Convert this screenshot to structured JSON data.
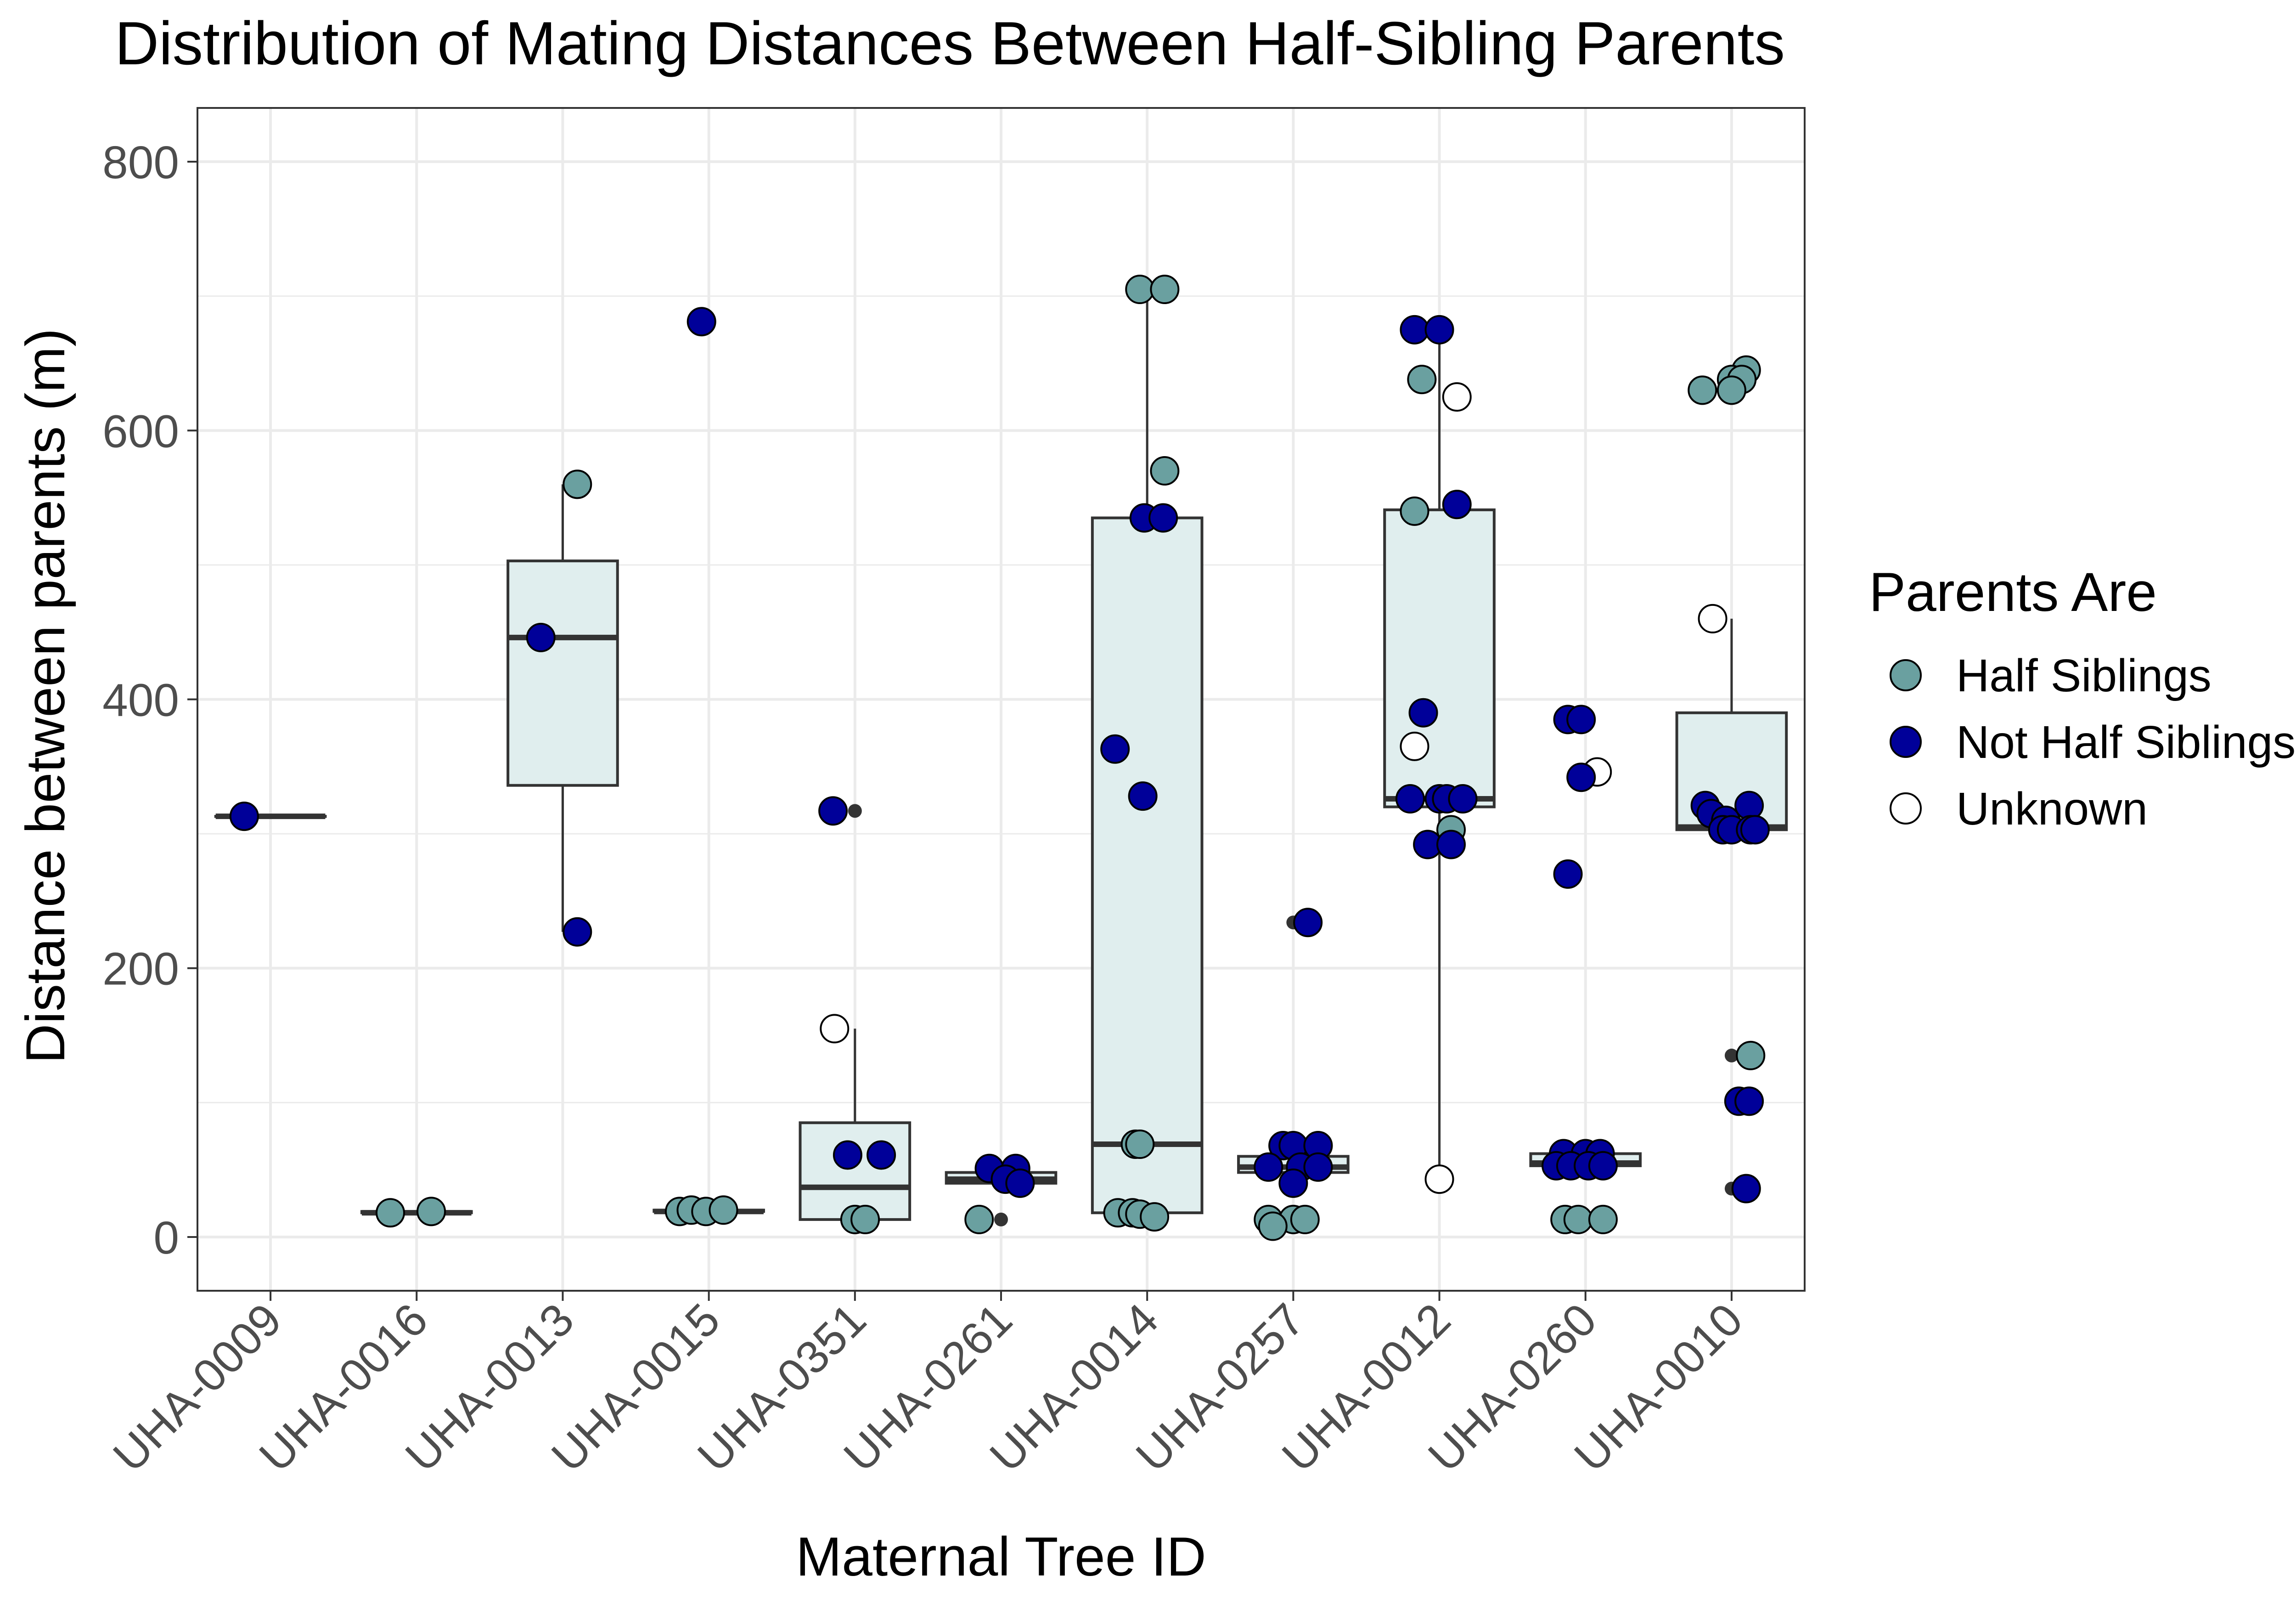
{
  "colors": {
    "half_siblings": "#6aa0a0",
    "not_half_siblings": "#000099",
    "unknown": "#ffffff",
    "box_fill": "#e0eeee",
    "box_stroke": "#333333",
    "grid": "#ebebeb",
    "panel_border": "#333333",
    "outlier": "#333333"
  },
  "chart_data": {
    "type": "box",
    "title": "Distribution of Mating Distances Between Half-Sibling Parents",
    "xlabel": "Maternal Tree ID",
    "ylabel": "Distance between parents (m)",
    "categories": [
      "UHA-0009",
      "UHA-0016",
      "UHA-0013",
      "UHA-0015",
      "UHA-0351",
      "UHA-0261",
      "UHA-0014",
      "UHA-0257",
      "UHA-0012",
      "UHA-0260",
      "UHA-0010"
    ],
    "ylim": [
      -40,
      840
    ],
    "yticks": [
      0,
      200,
      400,
      600,
      800
    ],
    "grid": true,
    "legend": {
      "title": "Parents Are",
      "position": "right",
      "entries": [
        {
          "key": "half_siblings",
          "label": "Half Siblings"
        },
        {
          "key": "not_half_siblings",
          "label": "Not Half Siblings"
        },
        {
          "key": "unknown",
          "label": "Unknown"
        }
      ]
    },
    "boxes": [
      {
        "category": "UHA-0009",
        "min": 313,
        "q1": 313,
        "median": 313,
        "q3": 313,
        "max": 313,
        "outliers": []
      },
      {
        "category": "UHA-0016",
        "min": 18,
        "q1": 18,
        "median": 18,
        "q3": 19,
        "max": 19,
        "outliers": []
      },
      {
        "category": "UHA-0013",
        "min": 227,
        "q1": 336,
        "median": 446,
        "q3": 503,
        "max": 560,
        "outliers": []
      },
      {
        "category": "UHA-0015",
        "min": 19,
        "q1": 19,
        "median": 19,
        "q3": 20,
        "max": 20,
        "outliers": []
      },
      {
        "category": "UHA-0351",
        "min": 13,
        "q1": 13,
        "median": 37,
        "q3": 85,
        "max": 155,
        "outliers": [
          317
        ]
      },
      {
        "category": "UHA-0261",
        "min": 38,
        "q1": 40,
        "median": 43,
        "q3": 48,
        "max": 51,
        "outliers": [
          13
        ]
      },
      {
        "category": "UHA-0014",
        "min": 15,
        "q1": 18,
        "median": 69,
        "q3": 535,
        "max": 705,
        "outliers": []
      },
      {
        "category": "UHA-0257",
        "min": 45,
        "q1": 48,
        "median": 52,
        "q3": 60,
        "max": 68,
        "outliers": [
          234
        ]
      },
      {
        "category": "UHA-0012",
        "min": 43,
        "q1": 320,
        "median": 326,
        "q3": 541,
        "max": 675,
        "outliers": []
      },
      {
        "category": "UHA-0260",
        "min": 52,
        "q1": 53,
        "median": 55,
        "q3": 62,
        "max": 62,
        "outliers": []
      },
      {
        "category": "UHA-0010",
        "min": 301,
        "q1": 303,
        "median": 305,
        "q3": 390,
        "max": 460,
        "outliers": [
          135,
          36
        ]
      }
    ],
    "points": [
      {
        "category": "UHA-0009",
        "group": "not_half_siblings",
        "y": 313,
        "jitter": -0.18
      },
      {
        "category": "UHA-0016",
        "group": "half_siblings",
        "y": 18,
        "jitter": -0.18
      },
      {
        "category": "UHA-0016",
        "group": "half_siblings",
        "y": 19,
        "jitter": 0.1
      },
      {
        "category": "UHA-0013",
        "group": "half_siblings",
        "y": 560,
        "jitter": 0.1
      },
      {
        "category": "UHA-0013",
        "group": "not_half_siblings",
        "y": 446,
        "jitter": -0.15
      },
      {
        "category": "UHA-0013",
        "group": "not_half_siblings",
        "y": 227,
        "jitter": 0.1
      },
      {
        "category": "UHA-0015",
        "group": "not_half_siblings",
        "y": 681,
        "jitter": -0.05
      },
      {
        "category": "UHA-0015",
        "group": "half_siblings",
        "y": 19,
        "jitter": -0.2
      },
      {
        "category": "UHA-0015",
        "group": "half_siblings",
        "y": 20,
        "jitter": -0.12
      },
      {
        "category": "UHA-0015",
        "group": "half_siblings",
        "y": 19,
        "jitter": -0.02
      },
      {
        "category": "UHA-0015",
        "group": "half_siblings",
        "y": 20,
        "jitter": 0.1
      },
      {
        "category": "UHA-0351",
        "group": "not_half_siblings",
        "y": 317,
        "jitter": -0.15
      },
      {
        "category": "UHA-0351",
        "group": "unknown",
        "y": 155,
        "jitter": -0.14
      },
      {
        "category": "UHA-0351",
        "group": "not_half_siblings",
        "y": 61,
        "jitter": -0.05
      },
      {
        "category": "UHA-0351",
        "group": "not_half_siblings",
        "y": 61,
        "jitter": 0.18
      },
      {
        "category": "UHA-0351",
        "group": "half_siblings",
        "y": 13,
        "jitter": 0.0
      },
      {
        "category": "UHA-0351",
        "group": "half_siblings",
        "y": 13,
        "jitter": 0.07
      },
      {
        "category": "UHA-0261",
        "group": "not_half_siblings",
        "y": 51,
        "jitter": -0.08
      },
      {
        "category": "UHA-0261",
        "group": "not_half_siblings",
        "y": 51,
        "jitter": 0.1
      },
      {
        "category": "UHA-0261",
        "group": "not_half_siblings",
        "y": 43,
        "jitter": 0.03
      },
      {
        "category": "UHA-0261",
        "group": "not_half_siblings",
        "y": 40,
        "jitter": 0.13
      },
      {
        "category": "UHA-0261",
        "group": "half_siblings",
        "y": 13,
        "jitter": -0.15
      },
      {
        "category": "UHA-0014",
        "group": "half_siblings",
        "y": 705,
        "jitter": -0.05
      },
      {
        "category": "UHA-0014",
        "group": "half_siblings",
        "y": 705,
        "jitter": 0.12
      },
      {
        "category": "UHA-0014",
        "group": "half_siblings",
        "y": 570,
        "jitter": 0.12
      },
      {
        "category": "UHA-0014",
        "group": "not_half_siblings",
        "y": 535,
        "jitter": -0.02
      },
      {
        "category": "UHA-0014",
        "group": "not_half_siblings",
        "y": 535,
        "jitter": 0.11
      },
      {
        "category": "UHA-0014",
        "group": "not_half_siblings",
        "y": 363,
        "jitter": -0.22
      },
      {
        "category": "UHA-0014",
        "group": "not_half_siblings",
        "y": 328,
        "jitter": -0.03
      },
      {
        "category": "UHA-0014",
        "group": "half_siblings",
        "y": 69,
        "jitter": -0.08
      },
      {
        "category": "UHA-0014",
        "group": "half_siblings",
        "y": 69,
        "jitter": -0.05
      },
      {
        "category": "UHA-0014",
        "group": "half_siblings",
        "y": 18,
        "jitter": -0.2
      },
      {
        "category": "UHA-0014",
        "group": "half_siblings",
        "y": 18,
        "jitter": -0.1
      },
      {
        "category": "UHA-0014",
        "group": "half_siblings",
        "y": 17,
        "jitter": -0.05
      },
      {
        "category": "UHA-0014",
        "group": "half_siblings",
        "y": 15,
        "jitter": 0.05
      },
      {
        "category": "UHA-0257",
        "group": "not_half_siblings",
        "y": 234,
        "jitter": 0.1
      },
      {
        "category": "UHA-0257",
        "group": "not_half_siblings",
        "y": 68,
        "jitter": -0.07
      },
      {
        "category": "UHA-0257",
        "group": "not_half_siblings",
        "y": 68,
        "jitter": 0.0
      },
      {
        "category": "UHA-0257",
        "group": "not_half_siblings",
        "y": 68,
        "jitter": 0.17
      },
      {
        "category": "UHA-0257",
        "group": "not_half_siblings",
        "y": 52,
        "jitter": -0.17
      },
      {
        "category": "UHA-0257",
        "group": "not_half_siblings",
        "y": 52,
        "jitter": 0.05
      },
      {
        "category": "UHA-0257",
        "group": "not_half_siblings",
        "y": 52,
        "jitter": 0.17
      },
      {
        "category": "UHA-0257",
        "group": "not_half_siblings",
        "y": 40,
        "jitter": 0.0
      },
      {
        "category": "UHA-0257",
        "group": "half_siblings",
        "y": 13,
        "jitter": -0.17
      },
      {
        "category": "UHA-0257",
        "group": "half_siblings",
        "y": 13,
        "jitter": 0.0
      },
      {
        "category": "UHA-0257",
        "group": "half_siblings",
        "y": 13,
        "jitter": 0.08
      },
      {
        "category": "UHA-0257",
        "group": "half_siblings",
        "y": 8,
        "jitter": -0.14
      },
      {
        "category": "UHA-0012",
        "group": "not_half_siblings",
        "y": 675,
        "jitter": -0.17
      },
      {
        "category": "UHA-0012",
        "group": "not_half_siblings",
        "y": 675,
        "jitter": 0.0
      },
      {
        "category": "UHA-0012",
        "group": "half_siblings",
        "y": 638,
        "jitter": -0.12
      },
      {
        "category": "UHA-0012",
        "group": "unknown",
        "y": 625,
        "jitter": 0.12
      },
      {
        "category": "UHA-0012",
        "group": "not_half_siblings",
        "y": 545,
        "jitter": 0.12
      },
      {
        "category": "UHA-0012",
        "group": "half_siblings",
        "y": 540,
        "jitter": -0.17
      },
      {
        "category": "UHA-0012",
        "group": "not_half_siblings",
        "y": 390,
        "jitter": -0.11
      },
      {
        "category": "UHA-0012",
        "group": "unknown",
        "y": 365,
        "jitter": -0.17
      },
      {
        "category": "UHA-0012",
        "group": "not_half_siblings",
        "y": 326,
        "jitter": -0.2
      },
      {
        "category": "UHA-0012",
        "group": "not_half_siblings",
        "y": 326,
        "jitter": 0.0
      },
      {
        "category": "UHA-0012",
        "group": "not_half_siblings",
        "y": 326,
        "jitter": 0.05
      },
      {
        "category": "UHA-0012",
        "group": "not_half_siblings",
        "y": 326,
        "jitter": 0.16
      },
      {
        "category": "UHA-0012",
        "group": "half_siblings",
        "y": 303,
        "jitter": 0.08
      },
      {
        "category": "UHA-0012",
        "group": "not_half_siblings",
        "y": 292,
        "jitter": -0.08
      },
      {
        "category": "UHA-0012",
        "group": "not_half_siblings",
        "y": 292,
        "jitter": 0.08
      },
      {
        "category": "UHA-0012",
        "group": "unknown",
        "y": 43,
        "jitter": 0.0
      },
      {
        "category": "UHA-0260",
        "group": "not_half_siblings",
        "y": 385,
        "jitter": -0.12
      },
      {
        "category": "UHA-0260",
        "group": "not_half_siblings",
        "y": 385,
        "jitter": -0.03
      },
      {
        "category": "UHA-0260",
        "group": "unknown",
        "y": 346,
        "jitter": 0.08
      },
      {
        "category": "UHA-0260",
        "group": "not_half_siblings",
        "y": 342,
        "jitter": -0.03
      },
      {
        "category": "UHA-0260",
        "group": "not_half_siblings",
        "y": 270,
        "jitter": -0.12
      },
      {
        "category": "UHA-0260",
        "group": "not_half_siblings",
        "y": 62,
        "jitter": -0.15
      },
      {
        "category": "UHA-0260",
        "group": "not_half_siblings",
        "y": 62,
        "jitter": 0.0
      },
      {
        "category": "UHA-0260",
        "group": "not_half_siblings",
        "y": 62,
        "jitter": 0.1
      },
      {
        "category": "UHA-0260",
        "group": "not_half_siblings",
        "y": 53,
        "jitter": -0.2
      },
      {
        "category": "UHA-0260",
        "group": "not_half_siblings",
        "y": 53,
        "jitter": -0.1
      },
      {
        "category": "UHA-0260",
        "group": "not_half_siblings",
        "y": 53,
        "jitter": 0.02
      },
      {
        "category": "UHA-0260",
        "group": "not_half_siblings",
        "y": 53,
        "jitter": 0.12
      },
      {
        "category": "UHA-0260",
        "group": "half_siblings",
        "y": 13,
        "jitter": -0.14
      },
      {
        "category": "UHA-0260",
        "group": "half_siblings",
        "y": 13,
        "jitter": -0.05
      },
      {
        "category": "UHA-0260",
        "group": "half_siblings",
        "y": 13,
        "jitter": 0.12
      },
      {
        "category": "UHA-0010",
        "group": "half_siblings",
        "y": 645,
        "jitter": 0.1
      },
      {
        "category": "UHA-0010",
        "group": "half_siblings",
        "y": 638,
        "jitter": 0.0
      },
      {
        "category": "UHA-0010",
        "group": "half_siblings",
        "y": 638,
        "jitter": 0.07
      },
      {
        "category": "UHA-0010",
        "group": "half_siblings",
        "y": 630,
        "jitter": -0.2
      },
      {
        "category": "UHA-0010",
        "group": "half_siblings",
        "y": 630,
        "jitter": 0.0
      },
      {
        "category": "UHA-0010",
        "group": "unknown",
        "y": 460,
        "jitter": -0.13
      },
      {
        "category": "UHA-0010",
        "group": "not_half_siblings",
        "y": 321,
        "jitter": -0.18
      },
      {
        "category": "UHA-0010",
        "group": "not_half_siblings",
        "y": 321,
        "jitter": 0.12
      },
      {
        "category": "UHA-0010",
        "group": "not_half_siblings",
        "y": 315,
        "jitter": -0.14
      },
      {
        "category": "UHA-0010",
        "group": "not_half_siblings",
        "y": 310,
        "jitter": -0.04
      },
      {
        "category": "UHA-0010",
        "group": "not_half_siblings",
        "y": 303,
        "jitter": -0.06
      },
      {
        "category": "UHA-0010",
        "group": "not_half_siblings",
        "y": 303,
        "jitter": 0.0
      },
      {
        "category": "UHA-0010",
        "group": "not_half_siblings",
        "y": 303,
        "jitter": 0.13
      },
      {
        "category": "UHA-0010",
        "group": "not_half_siblings",
        "y": 303,
        "jitter": 0.16
      },
      {
        "category": "UHA-0010",
        "group": "half_siblings",
        "y": 135,
        "jitter": 0.13
      },
      {
        "category": "UHA-0010",
        "group": "not_half_siblings",
        "y": 101,
        "jitter": 0.05
      },
      {
        "category": "UHA-0010",
        "group": "not_half_siblings",
        "y": 101,
        "jitter": 0.12
      },
      {
        "category": "UHA-0010",
        "group": "not_half_siblings",
        "y": 36,
        "jitter": 0.1
      }
    ]
  }
}
